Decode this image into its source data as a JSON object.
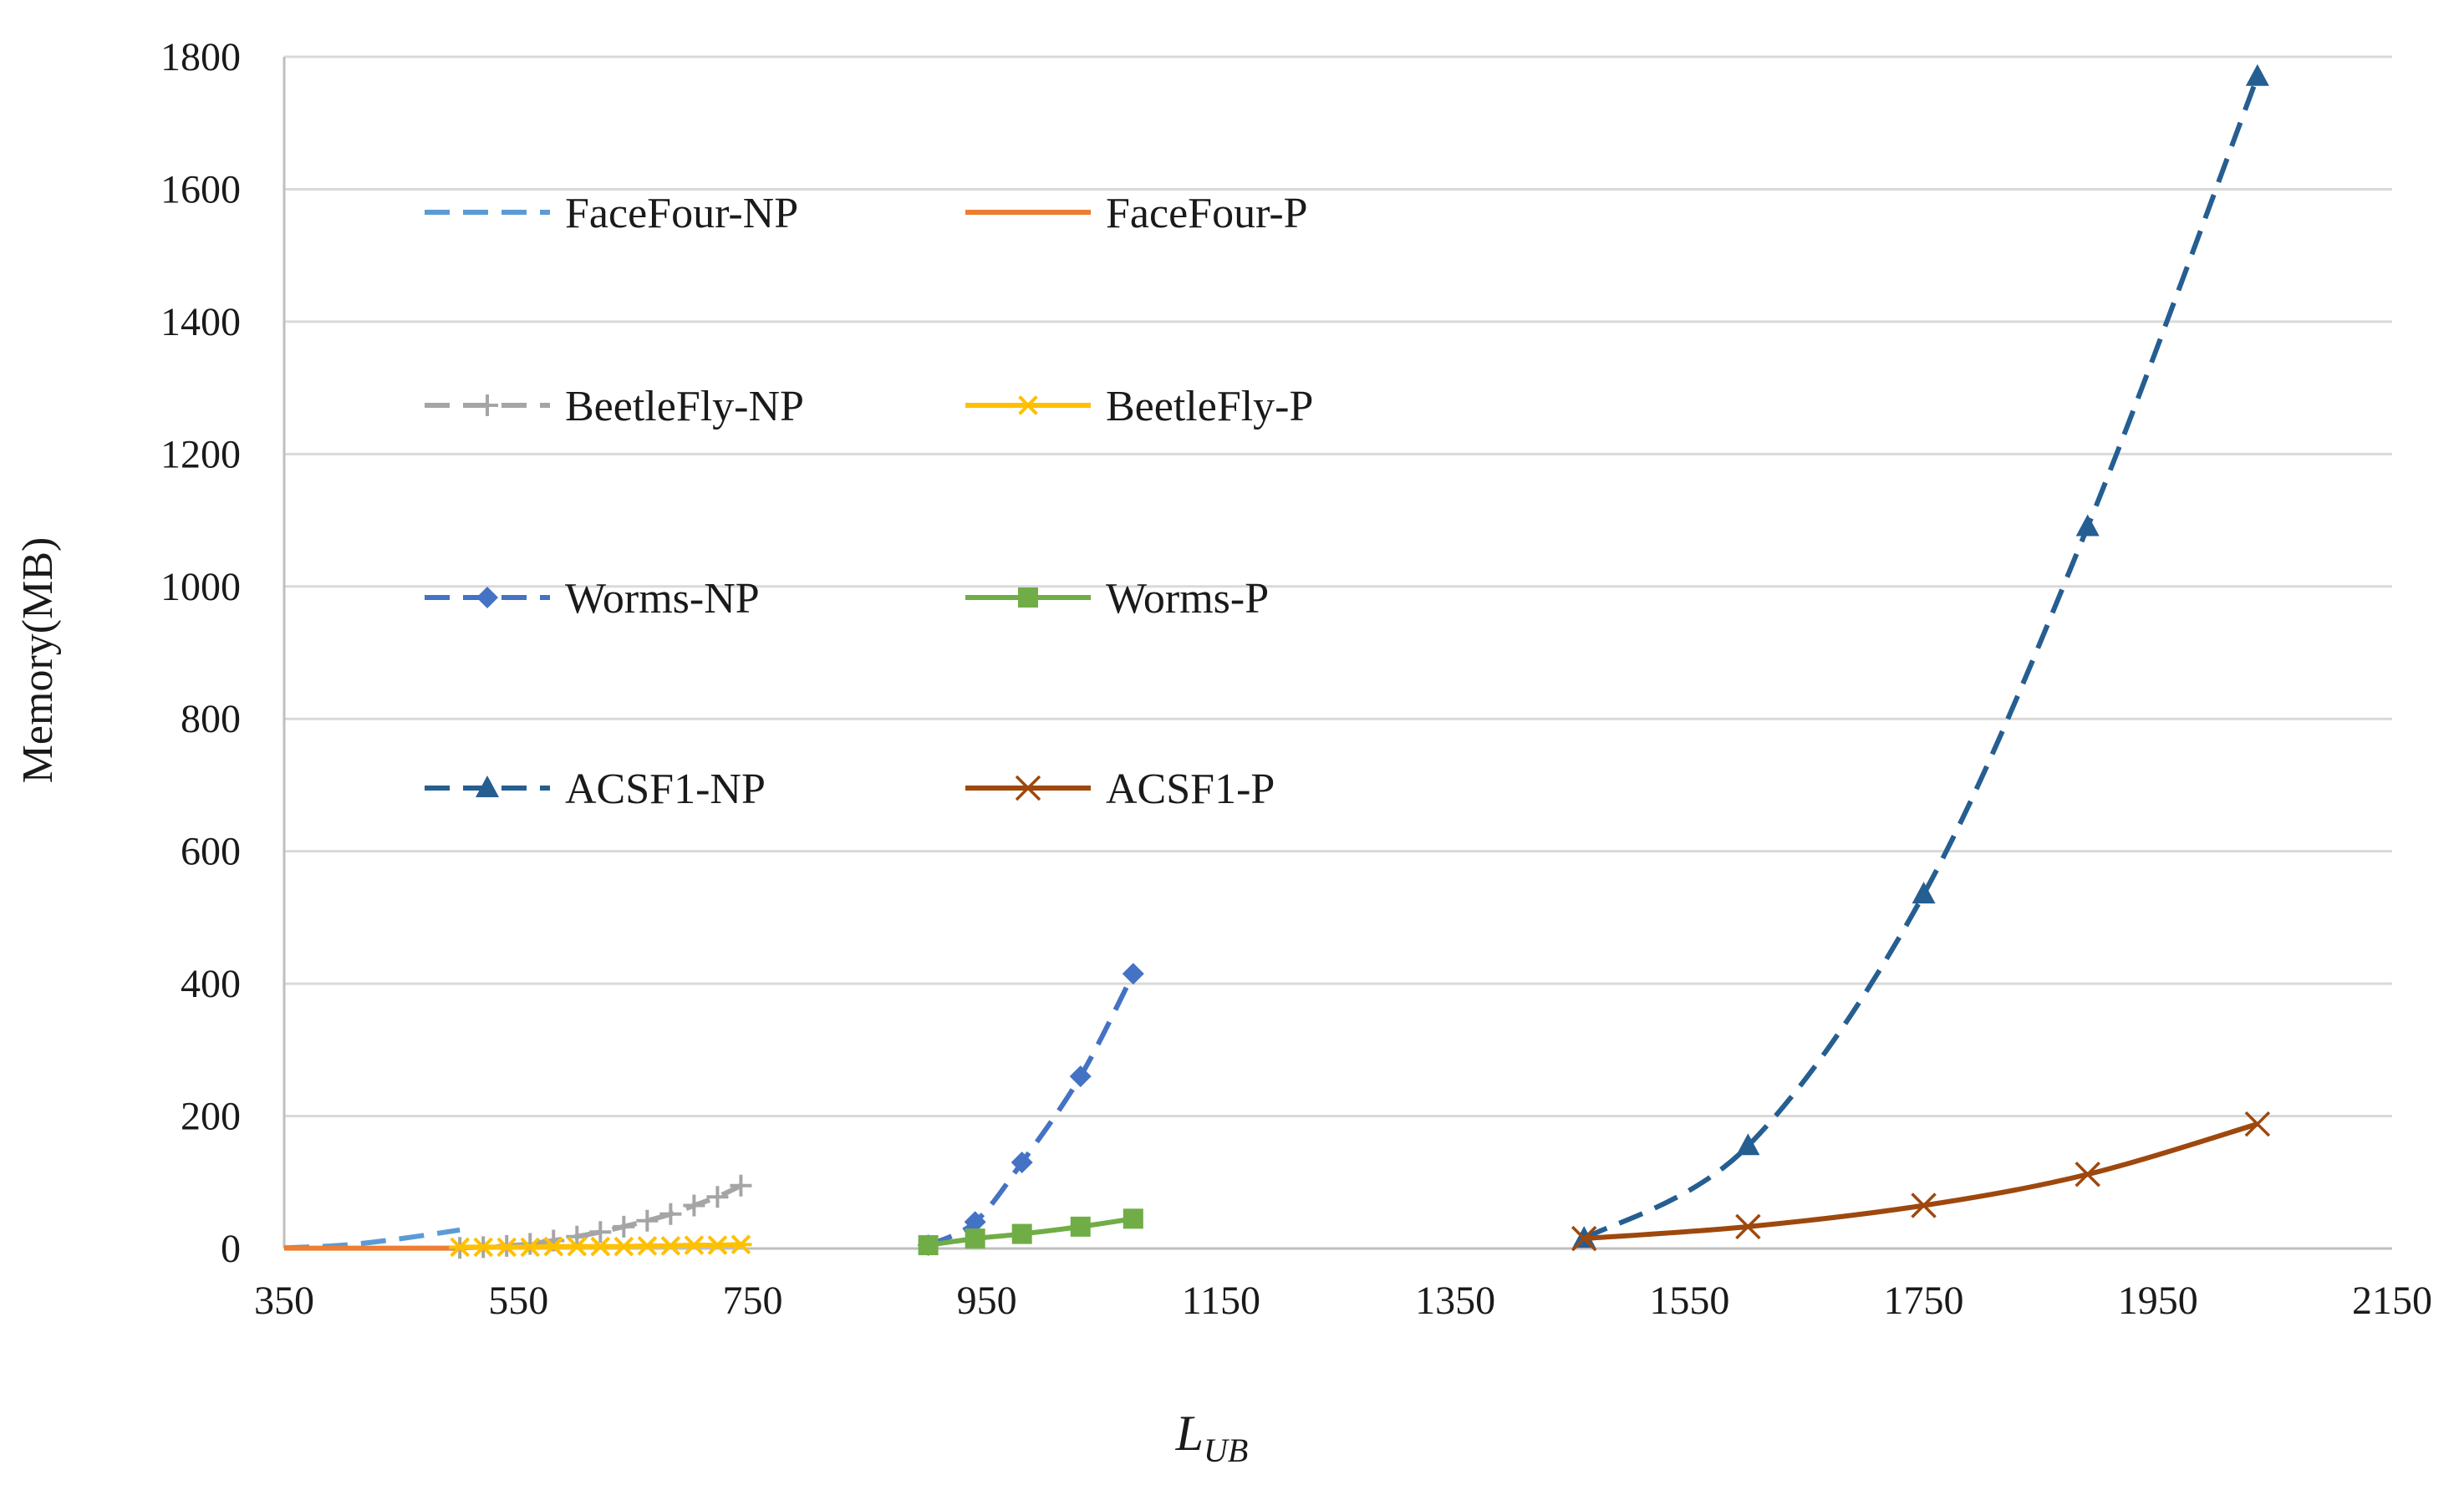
{
  "chart_data": {
    "type": "line",
    "title": "",
    "xlabel": "L",
    "xlabel_subscript": "UB",
    "ylabel": "Memory(MB)",
    "xlim": [
      350,
      2150
    ],
    "ylim": [
      0,
      1800
    ],
    "xticks": [
      "350",
      "550",
      "750",
      "950",
      "1150",
      "1350",
      "1550",
      "1750",
      "1950",
      "2150"
    ],
    "yticks": [
      "0",
      "200",
      "400",
      "600",
      "800",
      "1000",
      "1200",
      "1400",
      "1600",
      "1800"
    ],
    "grid": "horizontal",
    "legend_position": "upper-left",
    "series": [
      {
        "name": "FaceFour-NP",
        "color": "#5b9bd5",
        "dash": "dashed",
        "marker": "none",
        "x": [
          350,
          400,
          450,
          500
        ],
        "y": [
          1,
          5,
          15,
          28
        ]
      },
      {
        "name": "FaceFour-P",
        "color": "#ed7d31",
        "dash": "solid",
        "marker": "none",
        "x": [
          350,
          400,
          450,
          500
        ],
        "y": [
          0.5,
          0.5,
          0.5,
          0.5
        ]
      },
      {
        "name": "BeetleFly-NP",
        "color": "#a5a5a5",
        "dash": "dashed",
        "marker": "plus",
        "x": [
          500,
          520,
          540,
          560,
          580,
          600,
          620,
          640,
          660,
          680,
          700,
          720,
          740
        ],
        "y": [
          1,
          2,
          4,
          7,
          12,
          18,
          25,
          33,
          42,
          52,
          65,
          78,
          95
        ]
      },
      {
        "name": "BeetleFly-P",
        "color": "#ffc000",
        "dash": "solid",
        "marker": "asterisk",
        "x": [
          500,
          520,
          540,
          560,
          580,
          600,
          620,
          640,
          660,
          680,
          700,
          720,
          740
        ],
        "y": [
          2,
          2,
          2,
          2,
          3,
          3,
          3,
          3,
          4,
          4,
          5,
          5,
          6
        ]
      },
      {
        "name": "Worms-NP",
        "color": "#4472c4",
        "dash": "dashed",
        "marker": "diamond",
        "x": [
          900,
          940,
          980,
          1030,
          1075
        ],
        "y": [
          5,
          40,
          130,
          260,
          415
        ]
      },
      {
        "name": "Worms-P",
        "color": "#70ad47",
        "dash": "solid",
        "marker": "square",
        "x": [
          900,
          940,
          980,
          1030,
          1075
        ],
        "y": [
          5,
          15,
          22,
          33,
          45
        ]
      },
      {
        "name": "ACSF1-NP",
        "color": "#255e91",
        "dash": "dashed",
        "marker": "triangle",
        "x": [
          1460,
          1600,
          1750,
          1890,
          2035
        ],
        "y": [
          15,
          155,
          535,
          1090,
          1770
        ]
      },
      {
        "name": "ACSF1-P",
        "color": "#9e480e",
        "dash": "solid",
        "marker": "x",
        "x": [
          1460,
          1600,
          1750,
          1890,
          2035
        ],
        "y": [
          15,
          33,
          65,
          112,
          188
        ]
      }
    ]
  }
}
